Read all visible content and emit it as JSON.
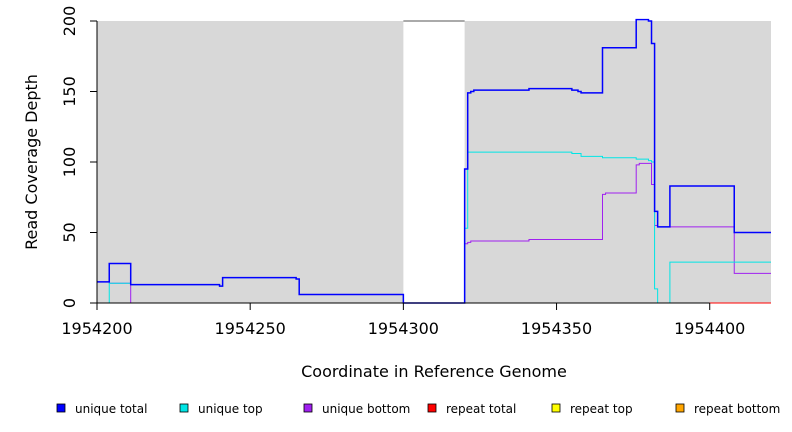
{
  "chart_data": {
    "type": "line",
    "title": "",
    "xlabel": "Coordinate in Reference Genome",
    "ylabel": "Read Coverage Depth",
    "xlim": [
      1954200,
      1954420
    ],
    "ylim": [
      0,
      200
    ],
    "xticks": [
      1954200,
      1954250,
      1954300,
      1954350,
      1954400
    ],
    "yticks": [
      0,
      50,
      100,
      150,
      200
    ],
    "x_tick_labels": [
      "1954200",
      "1954250",
      "1954300",
      "1954350",
      "1954400"
    ],
    "y_tick_labels": [
      "0",
      "50",
      "100",
      "150",
      "200"
    ],
    "gap_regions": [
      [
        1954300,
        1954320
      ]
    ],
    "background_color": "#d8d8d8",
    "gap_color": "#ffffff",
    "legend_placement": "bottom",
    "series": [
      {
        "name": "unique total",
        "color": "#0000ff",
        "step": [
          [
            1954200,
            15
          ],
          [
            1954204,
            28
          ],
          [
            1954211,
            13
          ],
          [
            1954240,
            12
          ],
          [
            1954241,
            18
          ],
          [
            1954265,
            17
          ],
          [
            1954266,
            6
          ],
          [
            1954300,
            0
          ],
          [
            1954320,
            95
          ],
          [
            1954321,
            149
          ],
          [
            1954322,
            150
          ],
          [
            1954323,
            151
          ],
          [
            1954341,
            152
          ],
          [
            1954355,
            151
          ],
          [
            1954357,
            150
          ],
          [
            1954358,
            149
          ],
          [
            1954365,
            181
          ],
          [
            1954376,
            201
          ],
          [
            1954380,
            200
          ],
          [
            1954381,
            184
          ],
          [
            1954382,
            65
          ],
          [
            1954383,
            54
          ],
          [
            1954387,
            83
          ],
          [
            1954408,
            50
          ],
          [
            1954420,
            50
          ]
        ]
      },
      {
        "name": "unique top",
        "color": "#00e5e5",
        "step": [
          [
            1954200,
            0
          ],
          [
            1954204,
            14
          ],
          [
            1954211,
            13
          ],
          [
            1954240,
            12
          ],
          [
            1954241,
            18
          ],
          [
            1954265,
            17
          ],
          [
            1954266,
            6
          ],
          [
            1954300,
            0
          ],
          [
            1954320,
            53
          ],
          [
            1954321,
            107
          ],
          [
            1954355,
            106
          ],
          [
            1954358,
            104
          ],
          [
            1954365,
            103
          ],
          [
            1954376,
            102
          ],
          [
            1954380,
            101
          ],
          [
            1954381,
            100
          ],
          [
            1954382,
            10
          ],
          [
            1954383,
            0
          ],
          [
            1954387,
            29
          ],
          [
            1954420,
            29
          ]
        ]
      },
      {
        "name": "unique bottom",
        "color": "#a020f0",
        "step": [
          [
            1954200,
            15
          ],
          [
            1954204,
            14
          ],
          [
            1954211,
            0
          ],
          [
            1954300,
            0
          ],
          [
            1954320,
            42
          ],
          [
            1954321,
            43
          ],
          [
            1954322,
            44
          ],
          [
            1954341,
            45
          ],
          [
            1954365,
            77
          ],
          [
            1954366,
            78
          ],
          [
            1954376,
            98
          ],
          [
            1954377,
            99
          ],
          [
            1954381,
            84
          ],
          [
            1954382,
            55
          ],
          [
            1954383,
            54
          ],
          [
            1954408,
            21
          ],
          [
            1954420,
            21
          ]
        ]
      },
      {
        "name": "repeat total",
        "color": "#ff0000",
        "step": [
          [
            1954200,
            0
          ],
          [
            1954420,
            0
          ]
        ]
      },
      {
        "name": "repeat top",
        "color": "#ffff00",
        "step": [
          [
            1954200,
            0
          ],
          [
            1954420,
            0
          ]
        ]
      },
      {
        "name": "repeat bottom",
        "color": "#ffa500",
        "step": [
          [
            1954200,
            0
          ],
          [
            1954420,
            0
          ]
        ]
      }
    ]
  }
}
